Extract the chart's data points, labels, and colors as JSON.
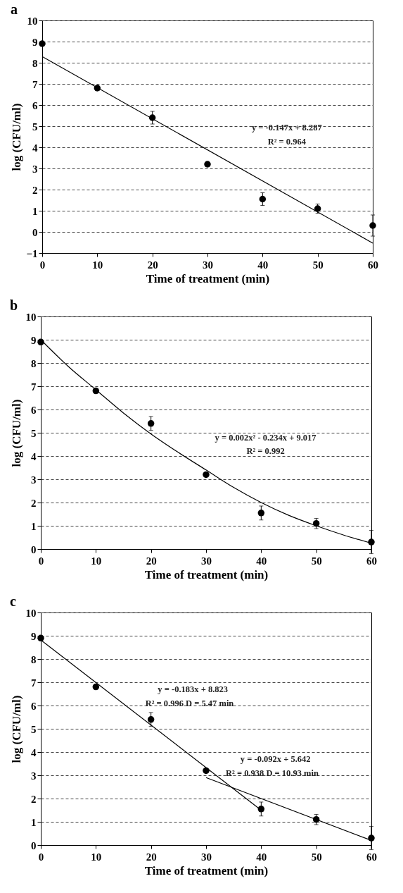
{
  "chart_data": [
    {
      "type": "scatter",
      "title": "a",
      "xlabel": "Time of treatment (min)",
      "ylabel": "log (CFU/ml)",
      "x": [
        0,
        10,
        20,
        30,
        40,
        50,
        60
      ],
      "xlim": [
        0,
        60
      ],
      "xticks": [
        0,
        10,
        20,
        30,
        40,
        50,
        60
      ],
      "ylim": [
        -1,
        10
      ],
      "yticks": [
        -1,
        0,
        1,
        2,
        3,
        4,
        5,
        6,
        7,
        8,
        9,
        10
      ],
      "grid": "y",
      "annotations": [
        "y = -0.147x + 8.287",
        "R² = 0.964"
      ],
      "series": [
        {
          "marker": "circle",
          "color": "#000000",
          "values": [
            8.9,
            6.8,
            5.4,
            3.2,
            1.55,
            1.1,
            0.3
          ],
          "errors": [
            0.1,
            null,
            0.3,
            null,
            0.3,
            0.22,
            0.5
          ]
        },
        {
          "type": "line",
          "color": "#000000",
          "line_style": "solid",
          "x": [
            0,
            60
          ],
          "values": [
            8.29,
            -0.53
          ]
        }
      ]
    },
    {
      "type": "scatter",
      "title": "b",
      "xlabel": "Time of treatment (min)",
      "ylabel": "log (CFU/ml)",
      "x": [
        0,
        10,
        20,
        30,
        40,
        50,
        60
      ],
      "xlim": [
        0,
        60
      ],
      "xticks": [
        0,
        10,
        20,
        30,
        40,
        50,
        60
      ],
      "ylim": [
        0,
        10
      ],
      "yticks": [
        0,
        1,
        2,
        3,
        4,
        5,
        6,
        7,
        8,
        9,
        10
      ],
      "grid": "y",
      "annotations": [
        "y = 0.002x² - 0.234x + 9.017",
        "R² = 0.992"
      ],
      "series": [
        {
          "marker": "circle",
          "color": "#000000",
          "values": [
            8.9,
            6.8,
            5.4,
            3.2,
            1.55,
            1.1,
            0.3
          ],
          "errors": [
            0.1,
            null,
            0.3,
            null,
            0.3,
            0.22,
            0.5
          ]
        },
        {
          "type": "line",
          "color": "#000000",
          "line_style": "solid",
          "x": [
            0,
            5,
            10,
            15,
            20,
            25,
            30,
            35,
            40,
            45,
            50,
            55,
            60
          ],
          "values": [
            9.0,
            7.85,
            6.85,
            5.85,
            4.95,
            4.15,
            3.4,
            2.65,
            2.0,
            1.45,
            1.0,
            0.6,
            0.25
          ]
        }
      ]
    },
    {
      "type": "scatter",
      "title": "c",
      "xlabel": "Time of treatment (min)",
      "ylabel": "log (CFU/ml)",
      "x": [
        0,
        10,
        20,
        30,
        40,
        50,
        60
      ],
      "xlim": [
        0,
        60
      ],
      "xticks": [
        0,
        10,
        20,
        30,
        40,
        50,
        60
      ],
      "ylim": [
        0,
        10
      ],
      "yticks": [
        0,
        1,
        2,
        3,
        4,
        5,
        6,
        7,
        8,
        9,
        10
      ],
      "grid": "y",
      "annotations": [
        "y = -0.183x + 8.823",
        "R² = 0.996  D = 5.47 min",
        "y = -0.092x + 5.642",
        "R² = 0.938  D = 10.93 min"
      ],
      "series": [
        {
          "marker": "circle",
          "color": "#000000",
          "values": [
            8.9,
            6.8,
            5.4,
            3.2,
            1.55,
            1.1,
            0.3
          ],
          "errors": [
            0.1,
            null,
            0.3,
            null,
            0.3,
            0.22,
            0.5
          ]
        },
        {
          "type": "line",
          "color": "#000000",
          "line_style": "solid",
          "x": [
            0,
            40
          ],
          "values": [
            8.82,
            1.5
          ]
        },
        {
          "type": "line",
          "color": "#000000",
          "line_style": "solid",
          "x": [
            30,
            60
          ],
          "values": [
            2.9,
            0.2
          ]
        }
      ]
    }
  ]
}
